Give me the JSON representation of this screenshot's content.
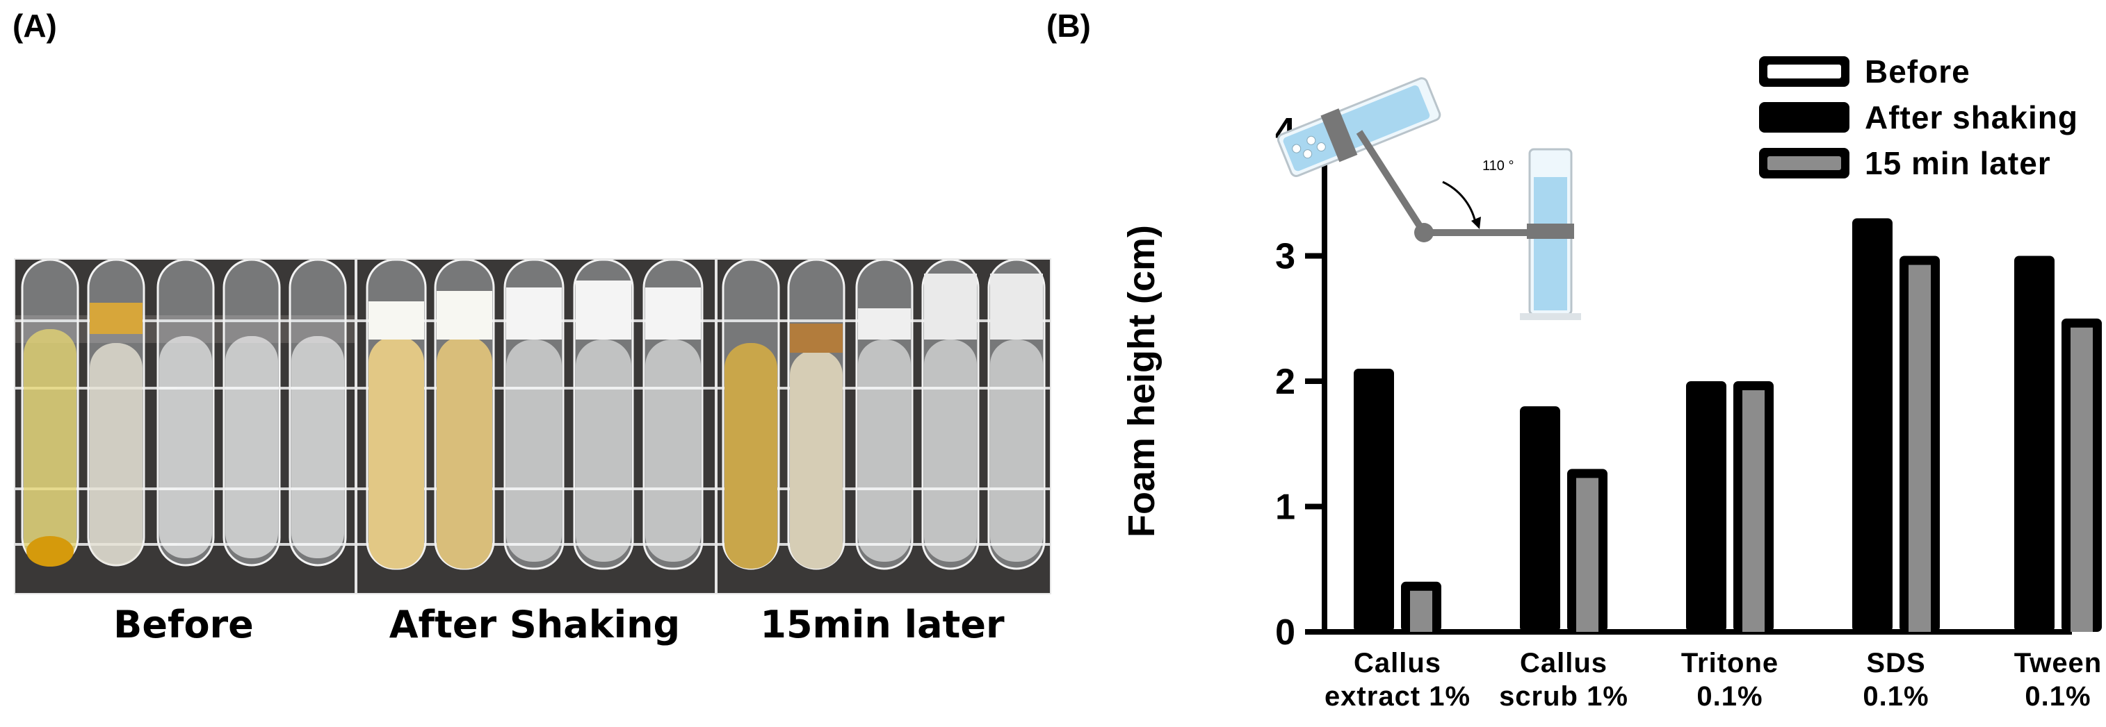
{
  "panels": {
    "a_label": "(A)",
    "b_label": "(B)"
  },
  "photos": {
    "captions": [
      "Before",
      "After Shaking",
      "15min later"
    ]
  },
  "colors": {
    "bar": "#000000",
    "after_inner": "#000000",
    "later_inner": "#8c8c8c",
    "before_inner": "#ffffff",
    "inset_blue": "#a9d7f0"
  },
  "chart_data": {
    "type": "bar",
    "ylabel": "Foam height (cm)",
    "ylim": [
      0,
      4
    ],
    "yticks": [
      "0",
      "1",
      "2",
      "3",
      "4"
    ],
    "categories": [
      [
        "Callus",
        "extract 1%"
      ],
      [
        "Callus",
        "scrub 1%"
      ],
      [
        "Tritone",
        "0.1%"
      ],
      [
        "SDS",
        "0.1%"
      ],
      [
        "Tween",
        "0.1%"
      ]
    ],
    "series": [
      {
        "name": "Before",
        "values": [
          0,
          0,
          0,
          0,
          0
        ]
      },
      {
        "name": "After shaking",
        "values": [
          2.1,
          1.8,
          2.0,
          3.3,
          3.0
        ]
      },
      {
        "name": "15 min later",
        "values": [
          0.4,
          1.3,
          2.0,
          3.0,
          2.5
        ]
      }
    ],
    "legend_position": "top-right",
    "inset": {
      "angle_label": "110 °"
    }
  }
}
